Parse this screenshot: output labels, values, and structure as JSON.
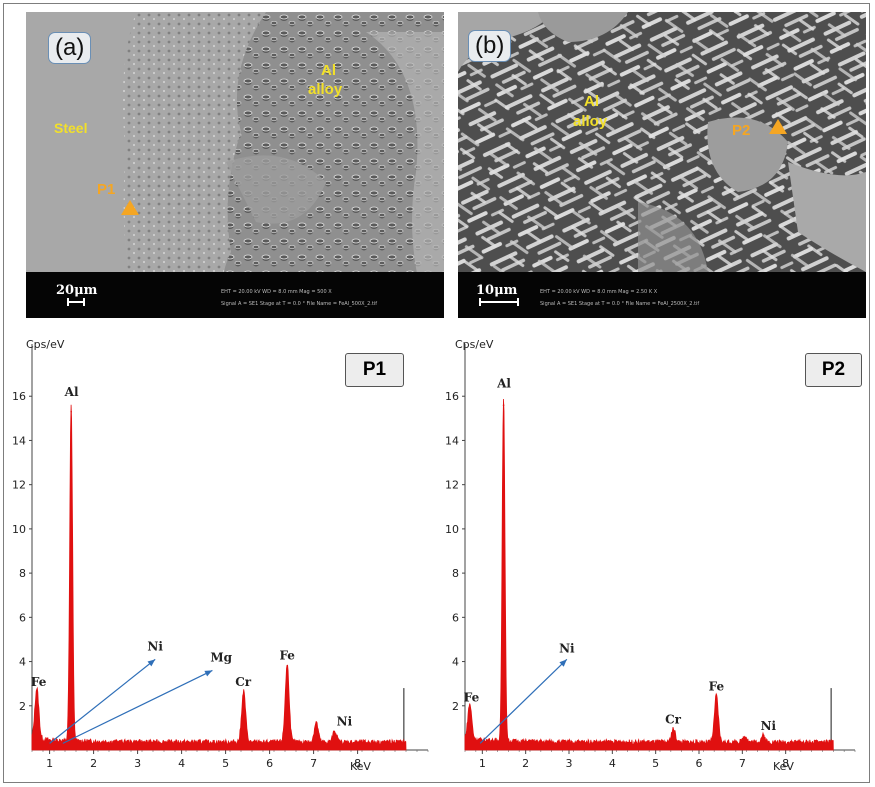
{
  "panel_a": {
    "tag": "(a)",
    "label_steel": "Steel",
    "label_al_line1": "Al",
    "label_al_line2": "alloy",
    "point": "P1",
    "scalebar": "20μm",
    "info1": "EHT = 20.00 kV   WD = 8.0 mm   Mag = 500 X",
    "info2": "Signal A = SE1   Stage at T = 0.0 °   File Name = FeAl_500X_2.tif"
  },
  "panel_b": {
    "tag": "(b)",
    "label_al_line1": "Al",
    "label_al_line2": "alloy",
    "point": "P2",
    "scalebar": "10μm",
    "info1": "EHT = 20.00 kV   WD = 8.0 mm   Mag = 2.50 K X",
    "info2": "Signal A = SE1   Stage at T = 0.0 °   File Name = FeAl_2500X_2.tif"
  },
  "colors": {
    "spectrum": "#e01010",
    "arrow": "#2f6fb8",
    "marker": "#f5a623",
    "sem_text": "#f2e02a"
  },
  "chart_data": [
    {
      "type": "line",
      "title": "P1",
      "ylabel": "Cps/eV",
      "xlabel": "KeV",
      "xlim": [
        0.6,
        9.6
      ],
      "ylim": [
        0,
        18
      ],
      "x_ticks": [
        1,
        2,
        3,
        4,
        5,
        6,
        7,
        8
      ],
      "y_ticks": [
        2,
        4,
        6,
        8,
        10,
        12,
        14,
        16
      ],
      "peaks": [
        {
          "element": "Fe",
          "x": 0.71,
          "y": 2.3
        },
        {
          "element": "Al",
          "x": 1.49,
          "y": 15.3
        },
        {
          "element": "Cr",
          "x": 5.41,
          "y": 2.3
        },
        {
          "element": "Fe",
          "x": 6.4,
          "y": 3.5
        },
        {
          "element": "Fe Kβ",
          "x": 7.06,
          "y": 0.9
        },
        {
          "element": "Ni",
          "x": 7.48,
          "y": 0.5
        }
      ],
      "labels": [
        {
          "text": "Fe",
          "x": 0.75,
          "y": 2.9
        },
        {
          "text": "Al",
          "x": 1.5,
          "y": 16.0
        },
        {
          "text": "Ni",
          "x": 3.4,
          "y": 4.5
        },
        {
          "text": "Mg",
          "x": 4.9,
          "y": 4.0
        },
        {
          "text": "Cr",
          "x": 5.4,
          "y": 2.9
        },
        {
          "text": "Fe",
          "x": 6.4,
          "y": 4.1
        },
        {
          "text": "Ni",
          "x": 7.7,
          "y": 1.1
        }
      ],
      "arrows": [
        {
          "from": [
            1.0,
            0.3
          ],
          "to": [
            3.4,
            4.1
          ]
        },
        {
          "from": [
            1.3,
            0.3
          ],
          "to": [
            4.7,
            3.6
          ]
        }
      ]
    },
    {
      "type": "line",
      "title": "P2",
      "ylabel": "Cps/eV",
      "xlabel": "KeV",
      "xlim": [
        0.6,
        9.6
      ],
      "ylim": [
        0,
        18
      ],
      "x_ticks": [
        1,
        2,
        3,
        4,
        5,
        6,
        7,
        8
      ],
      "y_ticks": [
        2,
        4,
        6,
        8,
        10,
        12,
        14,
        16
      ],
      "peaks": [
        {
          "element": "Fe",
          "x": 0.71,
          "y": 1.6
        },
        {
          "element": "Al",
          "x": 1.49,
          "y": 15.6
        },
        {
          "element": "Cr",
          "x": 5.41,
          "y": 0.6
        },
        {
          "element": "Fe",
          "x": 6.4,
          "y": 2.1
        },
        {
          "element": "Fe Kβ",
          "x": 7.06,
          "y": 0.3
        },
        {
          "element": "Ni",
          "x": 7.48,
          "y": 0.3
        }
      ],
      "labels": [
        {
          "text": "Fe",
          "x": 0.75,
          "y": 2.2
        },
        {
          "text": "Al",
          "x": 1.5,
          "y": 16.4
        },
        {
          "text": "Ni",
          "x": 2.95,
          "y": 4.4
        },
        {
          "text": "Cr",
          "x": 5.4,
          "y": 1.2
        },
        {
          "text": "Fe",
          "x": 6.4,
          "y": 2.7
        },
        {
          "text": "Ni",
          "x": 7.6,
          "y": 0.9
        }
      ],
      "arrows": [
        {
          "from": [
            0.95,
            0.3
          ],
          "to": [
            2.95,
            4.1
          ]
        }
      ]
    }
  ]
}
